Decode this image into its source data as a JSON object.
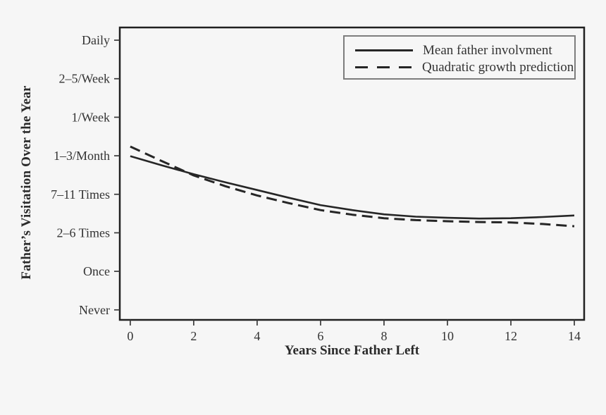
{
  "figure": {
    "background_color": "#f6f6f6",
    "frame_color": "#202020",
    "line_color": "#262626",
    "tick_color": "#3a3a3a",
    "text_color": "#333333",
    "legend_border_color": "#7d7d7d"
  },
  "chart_data": {
    "type": "line",
    "title": "",
    "xlabel": "Years Since Father Left",
    "ylabel": "Father’s Visitation Over the Year",
    "grid": false,
    "legend_position": "top-right",
    "x_ticks": [
      0,
      2,
      4,
      6,
      8,
      10,
      12,
      14
    ],
    "xlim": [
      -0.33,
      14.31
    ],
    "y_tick_values": [
      0,
      1,
      2,
      3,
      4,
      5,
      6,
      7
    ],
    "y_tick_labels": [
      "Never",
      "Once",
      "2–6 Times",
      "7–11 Times",
      "1–3/Month",
      "1/Week",
      "2–5/Week",
      "Daily"
    ],
    "ylim": [
      -0.26,
      7.33
    ],
    "x": [
      0,
      1,
      2,
      3,
      4,
      5,
      6,
      7,
      8,
      9,
      10,
      11,
      12,
      13,
      14
    ],
    "series": [
      {
        "name": "Mean father involvment",
        "style": "solid",
        "values": [
          3.99,
          3.75,
          3.52,
          3.31,
          3.11,
          2.91,
          2.72,
          2.59,
          2.48,
          2.42,
          2.39,
          2.37,
          2.38,
          2.41,
          2.45
        ]
      },
      {
        "name": "Quadratic growth prediction",
        "style": "dashed",
        "values": [
          4.24,
          3.86,
          3.49,
          3.21,
          2.97,
          2.77,
          2.59,
          2.47,
          2.38,
          2.33,
          2.3,
          2.28,
          2.27,
          2.23,
          2.17
        ]
      }
    ]
  }
}
